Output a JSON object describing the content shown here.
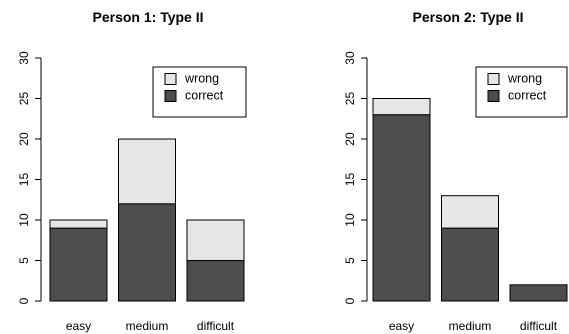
{
  "chart_data": [
    {
      "type": "bar",
      "stacked": true,
      "title": "Person 1: Type II",
      "categories": [
        "easy",
        "medium",
        "difficult"
      ],
      "series": [
        {
          "name": "correct",
          "values": [
            9,
            12,
            5
          ],
          "color": "#4d4d4d"
        },
        {
          "name": "wrong",
          "values": [
            1,
            8,
            5
          ],
          "color": "#e6e6e6"
        }
      ],
      "ylim": [
        0,
        30
      ],
      "yticks": [
        "0",
        "5",
        "10",
        "15",
        "20",
        "25",
        "30"
      ],
      "legend": "top-right",
      "legend_order": [
        "wrong",
        "correct"
      ],
      "grid": false
    },
    {
      "type": "bar",
      "stacked": true,
      "title": "Person 2: Type II",
      "categories": [
        "easy",
        "medium",
        "difficult"
      ],
      "series": [
        {
          "name": "correct",
          "values": [
            23,
            9,
            2
          ],
          "color": "#4d4d4d"
        },
        {
          "name": "wrong",
          "values": [
            2,
            4,
            0
          ],
          "color": "#e6e6e6"
        }
      ],
      "ylim": [
        0,
        30
      ],
      "yticks": [
        "0",
        "5",
        "10",
        "15",
        "20",
        "25",
        "30"
      ],
      "legend": "top-right",
      "legend_order": [
        "wrong",
        "correct"
      ],
      "grid": false
    }
  ]
}
